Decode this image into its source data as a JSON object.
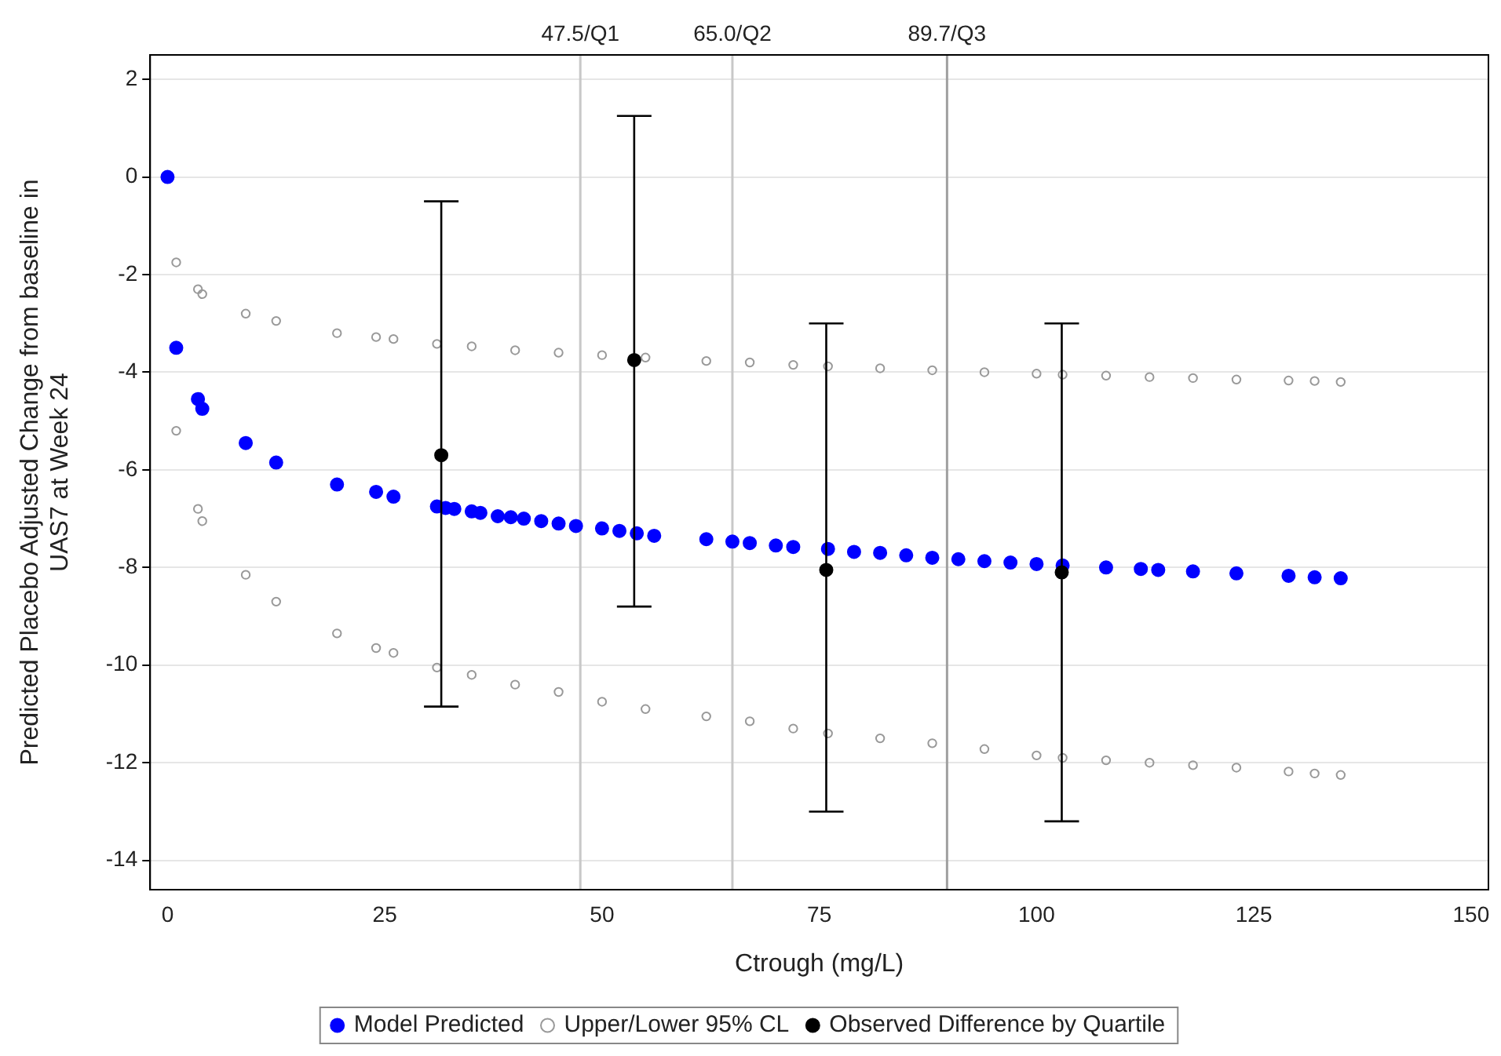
{
  "chart_data": {
    "type": "scatter",
    "xlabel": "Ctrough (mg/L)",
    "ylabel": "Predicted Placebo Adjusted Change from baseline in\nUAS7 at Week 24",
    "xlim": [
      -2,
      152
    ],
    "xticks": [
      0,
      25,
      50,
      75,
      100,
      125,
      150
    ],
    "ylim": [
      -14.6,
      2.5
    ],
    "yticks": [
      -14,
      -12,
      -10,
      -8,
      -6,
      -4,
      -2,
      0,
      2
    ],
    "grid": "y",
    "legend": "bottom",
    "marker": "circle",
    "series": [
      {
        "name": "Model Predicted",
        "color": "#0000ff",
        "x": [
          0,
          1,
          3.5,
          4,
          9,
          12.5,
          19.5,
          24,
          26,
          31,
          32,
          33,
          35,
          36,
          38,
          39.5,
          41,
          43,
          45,
          47,
          50,
          52,
          54,
          56,
          62,
          65,
          67,
          70,
          72,
          76,
          79,
          82,
          85,
          88,
          91,
          94,
          97,
          100,
          103,
          108,
          112,
          114,
          118,
          123,
          129,
          132,
          135
        ],
        "values": [
          0,
          -3.5,
          -4.55,
          -4.75,
          -5.45,
          -5.85,
          -6.3,
          -6.45,
          -6.55,
          -6.75,
          -6.78,
          -6.8,
          -6.85,
          -6.88,
          -6.95,
          -6.97,
          -7.0,
          -7.05,
          -7.1,
          -7.15,
          -7.2,
          -7.25,
          -7.3,
          -7.35,
          -7.42,
          -7.47,
          -7.5,
          -7.55,
          -7.58,
          -7.62,
          -7.68,
          -7.7,
          -7.75,
          -7.8,
          -7.83,
          -7.87,
          -7.9,
          -7.93,
          -7.96,
          -8.0,
          -8.03,
          -8.05,
          -8.08,
          -8.12,
          -8.17,
          -8.2,
          -8.22
        ]
      },
      {
        "name": "Upper/Lower 95% CL",
        "color": "#999999",
        "x": [
          1,
          3.5,
          4,
          9,
          12.5,
          19.5,
          24,
          26,
          31,
          35,
          40,
          45,
          50,
          55,
          62,
          67,
          72,
          76,
          82,
          88,
          94,
          100,
          103,
          108,
          113,
          118,
          123,
          129,
          132,
          135,
          1,
          3.5,
          4,
          9,
          12.5,
          19.5,
          24,
          26,
          31,
          35,
          40,
          45,
          50,
          55,
          62,
          67,
          72,
          76,
          82,
          88,
          94,
          100,
          103,
          108,
          113,
          118,
          123,
          129,
          132,
          135
        ],
        "values": [
          -1.75,
          -2.3,
          -2.4,
          -2.8,
          -2.95,
          -3.2,
          -3.28,
          -3.32,
          -3.42,
          -3.47,
          -3.55,
          -3.6,
          -3.65,
          -3.7,
          -3.77,
          -3.8,
          -3.85,
          -3.88,
          -3.92,
          -3.96,
          -4.0,
          -4.03,
          -4.05,
          -4.07,
          -4.1,
          -4.12,
          -4.15,
          -4.17,
          -4.18,
          -4.2,
          -5.2,
          -6.8,
          -7.05,
          -8.15,
          -8.7,
          -9.35,
          -9.65,
          -9.75,
          -10.05,
          -10.2,
          -10.4,
          -10.55,
          -10.75,
          -10.9,
          -11.05,
          -11.15,
          -11.3,
          -11.4,
          -11.5,
          -11.6,
          -11.72,
          -11.85,
          -11.9,
          -11.95,
          -12.0,
          -12.05,
          -12.1,
          -12.18,
          -12.22,
          -12.25
        ]
      },
      {
        "name": "Observed Difference by Quartile",
        "color": "#000000",
        "x": [
          31.5,
          53.7,
          75.8,
          102.9
        ],
        "values": [
          -5.7,
          -3.75,
          -8.05,
          -8.1
        ],
        "errors": [
          [
            -10.85,
            -0.5
          ],
          [
            -8.8,
            1.25
          ],
          [
            -13.0,
            -3.0
          ],
          [
            -13.2,
            -3.0
          ]
        ]
      }
    ],
    "ref_lines": [
      {
        "axis": "x",
        "value": 47.5,
        "label": "47.5/Q1",
        "color": "#c8c8c8"
      },
      {
        "axis": "x",
        "value": 65.0,
        "label": "65.0/Q2",
        "color": "#c8c8c8"
      },
      {
        "axis": "x",
        "value": 89.7,
        "label": "89.7/Q3",
        "color": "#a0a0a0"
      }
    ]
  }
}
